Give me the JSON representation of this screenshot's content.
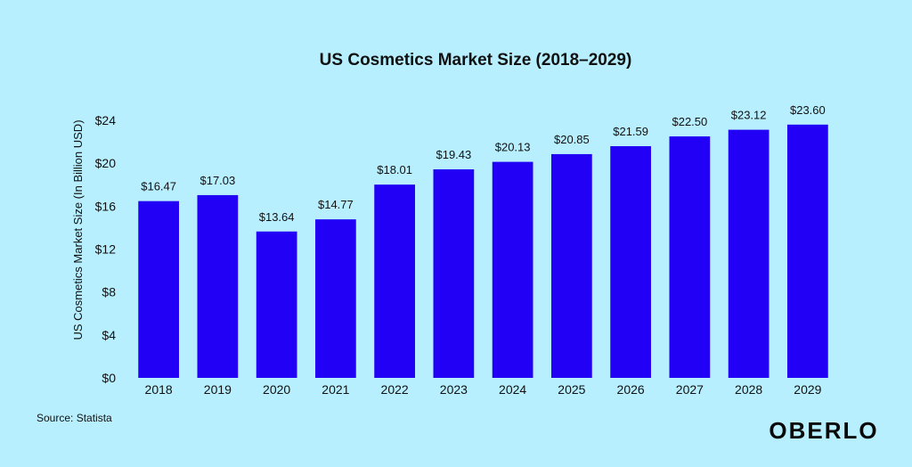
{
  "chart_data": {
    "type": "bar",
    "title": "US Cosmetics Market Size (2018–2029)",
    "xlabel": "",
    "ylabel": "US Cosmetics Market Size (In Billion USD)",
    "categories": [
      "2018",
      "2019",
      "2020",
      "2021",
      "2022",
      "2023",
      "2024",
      "2025",
      "2026",
      "2027",
      "2028",
      "2029"
    ],
    "values": [
      16.47,
      17.03,
      13.64,
      14.77,
      18.01,
      19.43,
      20.13,
      20.85,
      21.59,
      22.5,
      23.12,
      23.6
    ],
    "value_labels": [
      "$16.47",
      "$17.03",
      "$13.64",
      "$14.77",
      "$18.01",
      "$19.43",
      "$20.13",
      "$20.85",
      "$21.59",
      "$22.50",
      "$23.12",
      "$23.60"
    ],
    "ylim": [
      0,
      24
    ],
    "y_ticks": [
      0,
      4,
      8,
      12,
      16,
      20,
      24
    ],
    "y_tick_labels": [
      "$0",
      "$4",
      "$8",
      "$12",
      "$16",
      "$20",
      "$24"
    ],
    "grid": false,
    "legend": "none",
    "colors": {
      "bar": "#2200f5",
      "background": "#b7efff",
      "text": "#111111"
    }
  },
  "source": "Source: Statista",
  "logo_text": "OBERLO"
}
